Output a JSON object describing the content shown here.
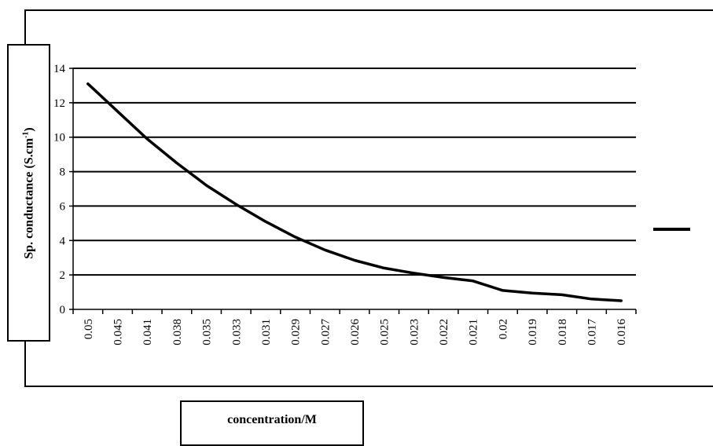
{
  "chart_data": {
    "type": "line",
    "title": "",
    "xlabel": "concentration/M",
    "ylabel_main": "Sp. conductance (S.cm",
    "ylabel_sup": "-1",
    "ylabel_tail": ")",
    "categories": [
      "0.05",
      "0.045",
      "0.041",
      "0.038",
      "0.035",
      "0.033",
      "0.031",
      "0.029",
      "0.027",
      "0.026",
      "0.025",
      "0.023",
      "0.022",
      "0.021",
      "0.02",
      "0.019",
      "0.018",
      "0.017",
      "0.016"
    ],
    "points": [
      {
        "x": "0.05",
        "y": 13.1
      },
      {
        "x": "0.045",
        "y": 11.5
      },
      {
        "x": "0.041",
        "y": 9.9
      },
      {
        "x": "0.038",
        "y": 8.5
      },
      {
        "x": "0.035",
        "y": 7.2
      },
      {
        "x": "0.033",
        "y": 6.1
      },
      {
        "x": "0.031",
        "y": 5.1
      },
      {
        "x": "0.029",
        "y": 4.2
      },
      {
        "x": "0.027",
        "y": 3.45
      },
      {
        "x": "0.026",
        "y": 2.85
      },
      {
        "x": "0.025",
        "y": 2.4
      },
      {
        "x": "0.023",
        "y": 2.1
      },
      {
        "x": "0.022",
        "y": 1.85
      },
      {
        "x": "0.021",
        "y": 1.65
      },
      {
        "x": "0.02",
        "y": 1.1
      },
      {
        "x": "0.019",
        "y": 0.95
      },
      {
        "x": "0.018",
        "y": 0.85
      },
      {
        "x": "0.017",
        "y": 0.6
      },
      {
        "x": "0.016",
        "y": 0.5
      }
    ],
    "ylim": [
      0,
      14
    ],
    "yticks": [
      0,
      2,
      4,
      6,
      8,
      10,
      12,
      14
    ],
    "grid": true,
    "legend": {
      "position": "right",
      "entries": [
        ""
      ]
    },
    "line_color": "#000000"
  }
}
